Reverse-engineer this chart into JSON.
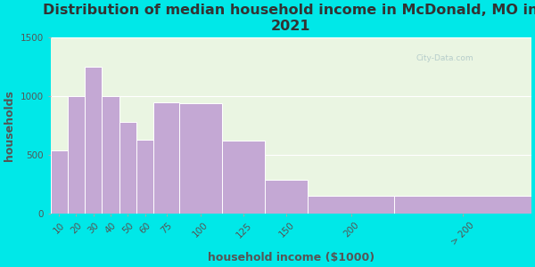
{
  "title": "Distribution of median household income in McDonald, MO in\n2021",
  "xlabel": "household income ($1000)",
  "ylabel": "households",
  "bar_labels": [
    "10",
    "20",
    "30",
    "40",
    "50",
    "60",
    "75",
    "100",
    "125",
    "150",
    "200",
    "> 200"
  ],
  "bar_values": [
    540,
    1000,
    1250,
    1000,
    780,
    630,
    950,
    940,
    620,
    290,
    150,
    150
  ],
  "bar_edges": [
    0,
    10,
    20,
    30,
    40,
    50,
    60,
    75,
    100,
    125,
    150,
    200,
    280
  ],
  "bar_color": "#c4a8d4",
  "background_color": "#00e8e8",
  "plot_bg_color": "#eaf5e2",
  "ylim": [
    0,
    1500
  ],
  "yticks": [
    0,
    500,
    1000,
    1500
  ],
  "title_fontsize": 11.5,
  "axis_label_fontsize": 9,
  "tick_fontsize": 7.5,
  "watermark": "City-Data.com"
}
